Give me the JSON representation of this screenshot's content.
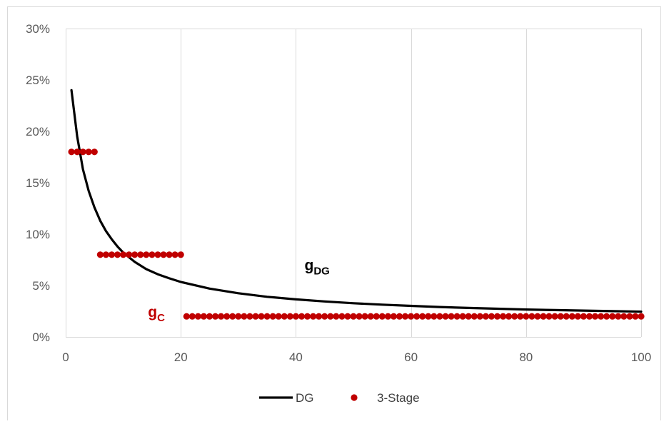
{
  "chart_data": {
    "type": "line",
    "xlim": [
      0,
      100
    ],
    "ylim": [
      0,
      0.3
    ],
    "x_ticks": [
      0,
      20,
      40,
      60,
      80,
      100
    ],
    "y_ticks": [
      0,
      0.05,
      0.1,
      0.15,
      0.2,
      0.25,
      0.3
    ],
    "x_tick_labels": [
      "0",
      "20",
      "40",
      "60",
      "80",
      "100"
    ],
    "y_tick_labels": [
      "0%",
      "5%",
      "10%",
      "15%",
      "20%",
      "25%",
      "30%"
    ],
    "grid": "vertical",
    "legend_position": "bottom",
    "series": [
      {
        "name": "DG",
        "kind": "line",
        "color": "#000000",
        "x": [
          1,
          2,
          3,
          4,
          5,
          6,
          7,
          8,
          9,
          10,
          12,
          14,
          16,
          18,
          20,
          25,
          30,
          35,
          40,
          45,
          50,
          55,
          60,
          65,
          70,
          75,
          80,
          85,
          90,
          95,
          100
        ],
        "y": [
          0.24,
          0.195,
          0.163,
          0.142,
          0.126,
          0.113,
          0.103,
          0.095,
          0.088,
          0.082,
          0.073,
          0.066,
          0.061,
          0.057,
          0.0535,
          0.047,
          0.0425,
          0.039,
          0.0365,
          0.0345,
          0.0328,
          0.0314,
          0.0302,
          0.0291,
          0.0282,
          0.0274,
          0.0267,
          0.0261,
          0.0256,
          0.0251,
          0.0246
        ]
      },
      {
        "name": "3-Stage",
        "kind": "scatter",
        "color": "#c00000",
        "segments": [
          {
            "x_from": 1,
            "x_to": 5,
            "y": 0.18
          },
          {
            "x_from": 6,
            "x_to": 20,
            "y": 0.08
          },
          {
            "x_from": 21,
            "x_to": 100,
            "y": 0.02
          }
        ]
      }
    ],
    "annotations": [
      {
        "id": "gdg",
        "main": "g",
        "sub": "DG",
        "x": 41.5,
        "y": 0.065,
        "color": "#000000"
      },
      {
        "id": "gc",
        "main": "g",
        "sub": "C",
        "x": 14.3,
        "y": 0.0195,
        "color": "#c00000"
      }
    ]
  }
}
